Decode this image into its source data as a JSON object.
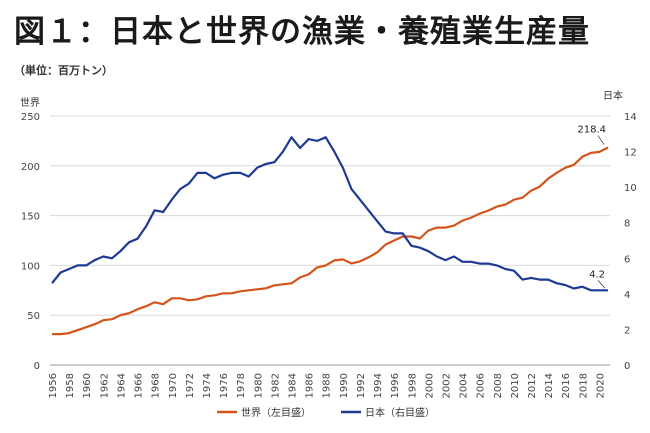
{
  "title": "図１：日本と世界の漁業・養殖業生産量",
  "unit_note": "（単位：百万トン）",
  "chart_data": {
    "type": "line",
    "left_axis": {
      "label": "世界",
      "ylim": [
        0,
        250
      ],
      "ticks": [
        0,
        50,
        100,
        150,
        200,
        250
      ]
    },
    "right_axis": {
      "label": "日本",
      "ylim": [
        0,
        14
      ],
      "ticks": [
        0,
        2,
        4,
        6,
        8,
        10,
        12,
        14
      ]
    },
    "x": [
      1956,
      1957,
      1958,
      1959,
      1960,
      1961,
      1962,
      1963,
      1964,
      1965,
      1966,
      1967,
      1968,
      1969,
      1970,
      1971,
      1972,
      1973,
      1974,
      1975,
      1976,
      1977,
      1978,
      1979,
      1980,
      1981,
      1982,
      1983,
      1984,
      1985,
      1986,
      1987,
      1988,
      1989,
      1990,
      1991,
      1992,
      1993,
      1994,
      1995,
      1996,
      1997,
      1998,
      1999,
      2000,
      2001,
      2002,
      2003,
      2004,
      2005,
      2006,
      2007,
      2008,
      2009,
      2010,
      2011,
      2012,
      2013,
      2014,
      2015,
      2016,
      2017,
      2018,
      2019,
      2020,
      2021
    ],
    "x_tick_labels": [
      "1956",
      "1958",
      "1960",
      "1962",
      "1964",
      "1966",
      "1968",
      "1970",
      "1972",
      "1974",
      "1976",
      "1978",
      "1980",
      "1982",
      "1984",
      "1986",
      "1988",
      "1990",
      "1992",
      "1994",
      "1996",
      "1998",
      "2000",
      "2002",
      "2004",
      "2006",
      "2008",
      "2010",
      "2012",
      "2014",
      "2016",
      "2018",
      "2020"
    ],
    "series": [
      {
        "name": "世界（左目盛）",
        "axis": "left",
        "color": "#d4541b",
        "values": [
          31,
          31,
          32,
          35,
          38,
          41,
          45,
          46,
          50,
          52,
          56,
          59,
          63,
          61,
          67,
          67,
          65,
          66,
          69,
          70,
          72,
          72,
          74,
          75,
          76,
          77,
          80,
          81,
          82,
          88,
          91,
          98,
          100,
          105,
          106,
          102,
          104,
          108,
          113,
          121,
          125,
          129,
          129,
          127,
          135,
          138,
          138,
          140,
          145,
          148,
          152,
          155,
          159,
          161,
          166,
          168,
          175,
          179,
          187,
          193,
          198,
          201,
          209,
          213,
          214,
          218.4
        ]
      },
      {
        "name": "日本（右目盛）",
        "axis": "right",
        "color": "#1f3a93",
        "values": [
          4.6,
          5.2,
          5.4,
          5.6,
          5.6,
          5.9,
          6.1,
          6.0,
          6.4,
          6.9,
          7.1,
          7.8,
          8.7,
          8.6,
          9.3,
          9.9,
          10.2,
          10.8,
          10.8,
          10.5,
          10.7,
          10.8,
          10.8,
          10.6,
          11.1,
          11.3,
          11.4,
          12.0,
          12.8,
          12.2,
          12.7,
          12.6,
          12.8,
          12.0,
          11.1,
          9.9,
          9.3,
          8.7,
          8.1,
          7.5,
          7.4,
          7.4,
          6.7,
          6.6,
          6.4,
          6.1,
          5.9,
          6.1,
          5.8,
          5.8,
          5.7,
          5.7,
          5.6,
          5.4,
          5.3,
          4.8,
          4.9,
          4.8,
          4.8,
          4.6,
          4.5,
          4.3,
          4.4,
          4.2,
          4.2,
          4.2
        ]
      }
    ],
    "annotations": [
      {
        "text": "218.4",
        "series": 0,
        "x": 2021
      },
      {
        "text": "4.2",
        "series": 1,
        "x": 2021
      }
    ],
    "legend_position": "bottom",
    "grid": "horizontal"
  }
}
